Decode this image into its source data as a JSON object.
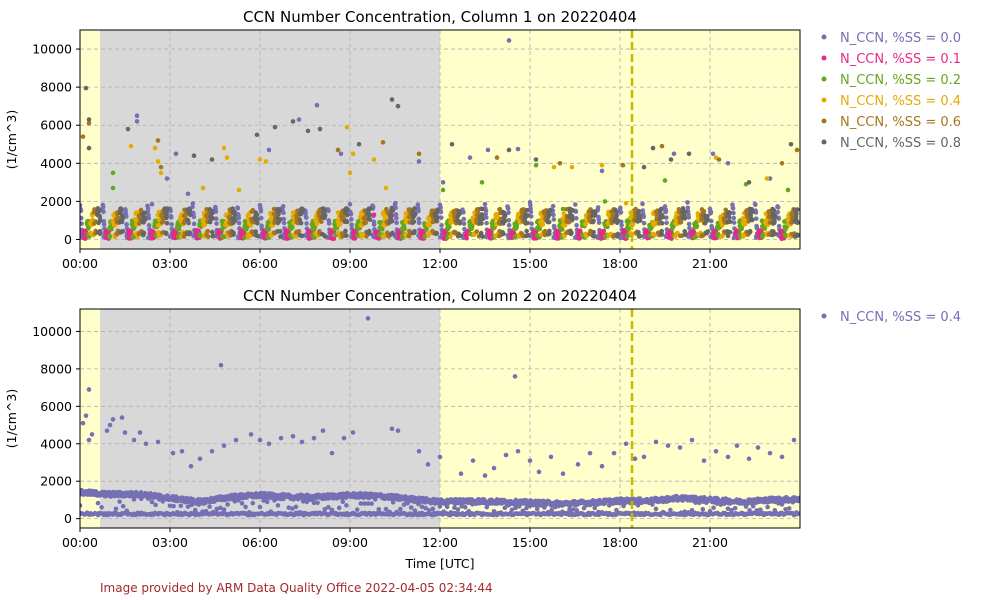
{
  "chart_data": [
    {
      "type": "scatter",
      "title": "CCN Number Concentration, Column 1 on 20220404",
      "ylabel": "(1/cm^3)",
      "xlabel": "",
      "xlim": [
        0,
        24
      ],
      "ylim": [
        -500,
        11000
      ],
      "x_unit": "hours UTC",
      "x_ticks": [
        0,
        3,
        6,
        9,
        12,
        15,
        18,
        21
      ],
      "x_tick_labels": [
        "00:00",
        "03:00",
        "06:00",
        "09:00",
        "12:00",
        "15:00",
        "18:00",
        "21:00"
      ],
      "y_ticks": [
        0,
        2000,
        4000,
        6000,
        8000,
        10000
      ],
      "y_tick_labels": [
        "0",
        "2000",
        "4000",
        "6000",
        "8000",
        "10000"
      ],
      "grid": true,
      "legend_position": "outside-right",
      "background_regions": [
        {
          "x0": 0,
          "x1": 24,
          "color": "#ffffcc"
        },
        {
          "x0": 0.67,
          "x1": 12.0,
          "color": "#d8d8d8"
        }
      ],
      "vline": {
        "x": 18.4,
        "color": "#c8b800",
        "style": "dashed"
      },
      "cycle_hours": 0.75,
      "series": [
        {
          "name": "N_CCN, %SS = 0.0",
          "color": "#7570b3",
          "baseline": 150,
          "cycle_amplitude": 1650,
          "outliers": [
            [
              1.9,
              6500
            ],
            [
              1.9,
              6200
            ],
            [
              2.4,
              1850
            ],
            [
              2.9,
              3200
            ],
            [
              3.2,
              4500
            ],
            [
              3.6,
              2400
            ],
            [
              6.3,
              4700
            ],
            [
              7.3,
              6300
            ],
            [
              7.9,
              7050
            ],
            [
              8.7,
              4500
            ],
            [
              11.3,
              4100
            ],
            [
              12.1,
              3000
            ],
            [
              13.0,
              4300
            ],
            [
              13.6,
              4700
            ],
            [
              14.3,
              10450
            ],
            [
              14.6,
              4750
            ],
            [
              16.4,
              1000
            ],
            [
              17.4,
              3600
            ],
            [
              19.8,
              4500
            ],
            [
              21.1,
              4500
            ],
            [
              21.6,
              4000
            ],
            [
              23.0,
              3200
            ]
          ]
        },
        {
          "name": "N_CCN, %SS = 0.1",
          "color": "#e7298a",
          "baseline": 80,
          "cycle_amplitude": 400,
          "outliers": [
            [
              9.8,
              1300
            ],
            [
              10.4,
              1250
            ],
            [
              11.0,
              400
            ]
          ]
        },
        {
          "name": "N_CCN, %SS = 0.2",
          "color": "#66a61e",
          "baseline": 200,
          "cycle_amplitude": 800,
          "outliers": [
            [
              1.1,
              2700
            ],
            [
              1.1,
              3500
            ],
            [
              2.9,
              1200
            ],
            [
              5.0,
              1300
            ],
            [
              12.1,
              2600
            ],
            [
              13.4,
              3000
            ],
            [
              15.2,
              3900
            ],
            [
              16.1,
              1600
            ],
            [
              17.5,
              2000
            ],
            [
              19.5,
              3100
            ],
            [
              22.2,
              2900
            ],
            [
              23.6,
              2600
            ]
          ]
        },
        {
          "name": "N_CCN, %SS = 0.4",
          "color": "#e6ab02",
          "baseline": 250,
          "cycle_amplitude": 1200,
          "outliers": [
            [
              1.7,
              4900
            ],
            [
              2.5,
              4800
            ],
            [
              2.6,
              4100
            ],
            [
              2.7,
              3500
            ],
            [
              3.5,
              1200
            ],
            [
              4.1,
              2700
            ],
            [
              4.8,
              4800
            ],
            [
              4.9,
              4300
            ],
            [
              5.3,
              2600
            ],
            [
              6.0,
              4200
            ],
            [
              6.2,
              4100
            ],
            [
              8.9,
              5900
            ],
            [
              9.0,
              3500
            ],
            [
              9.1,
              4500
            ],
            [
              9.8,
              4200
            ],
            [
              10.2,
              2700
            ],
            [
              15.8,
              3800
            ],
            [
              16.4,
              3800
            ],
            [
              17.4,
              3900
            ],
            [
              18.2,
              1900
            ],
            [
              21.2,
              4300
            ],
            [
              22.9,
              3200
            ]
          ]
        },
        {
          "name": "N_CCN, %SS = 0.6",
          "color": "#a6761d",
          "baseline": 300,
          "cycle_amplitude": 1300,
          "outliers": [
            [
              0.1,
              5400
            ],
            [
              0.3,
              6100
            ],
            [
              2.6,
              5200
            ],
            [
              2.7,
              3800
            ],
            [
              8.6,
              4700
            ],
            [
              10.1,
              5100
            ],
            [
              11.3,
              4500
            ],
            [
              13.9,
              4300
            ],
            [
              16.0,
              4000
            ],
            [
              18.1,
              3900
            ],
            [
              19.4,
              4900
            ],
            [
              21.3,
              4200
            ],
            [
              23.4,
              4000
            ],
            [
              23.9,
              4700
            ]
          ]
        },
        {
          "name": "N_CCN, %SS = 0.8",
          "color": "#666666",
          "baseline": 300,
          "cycle_amplitude": 1350,
          "outliers": [
            [
              0.2,
              7950
            ],
            [
              0.3,
              6300
            ],
            [
              0.3,
              4800
            ],
            [
              1.6,
              5800
            ],
            [
              3.8,
              4400
            ],
            [
              4.4,
              4200
            ],
            [
              5.9,
              5500
            ],
            [
              6.5,
              5900
            ],
            [
              7.1,
              6200
            ],
            [
              7.6,
              5700
            ],
            [
              8.0,
              5800
            ],
            [
              9.3,
              5000
            ],
            [
              10.4,
              7350
            ],
            [
              10.6,
              7000
            ],
            [
              12.4,
              5000
            ],
            [
              14.3,
              4700
            ],
            [
              15.2,
              4200
            ],
            [
              16.3,
              1200
            ],
            [
              18.8,
              3800
            ],
            [
              19.1,
              4800
            ],
            [
              19.7,
              4200
            ],
            [
              20.3,
              4500
            ],
            [
              22.3,
              3000
            ],
            [
              23.7,
              5000
            ]
          ]
        }
      ]
    },
    {
      "type": "scatter",
      "title": "CCN Number Concentration, Column 2 on 20220404",
      "ylabel": "(1/cm^3)",
      "xlabel": "Time [UTC]",
      "xlim": [
        0,
        24
      ],
      "ylim": [
        -500,
        11200
      ],
      "x_unit": "hours UTC",
      "x_ticks": [
        0,
        3,
        6,
        9,
        12,
        15,
        18,
        21
      ],
      "x_tick_labels": [
        "00:00",
        "03:00",
        "06:00",
        "09:00",
        "12:00",
        "15:00",
        "18:00",
        "21:00"
      ],
      "y_ticks": [
        0,
        2000,
        4000,
        6000,
        8000,
        10000
      ],
      "y_tick_labels": [
        "0",
        "2000",
        "4000",
        "6000",
        "8000",
        "10000"
      ],
      "grid": true,
      "legend_position": "outside-right",
      "background_regions": [
        {
          "x0": 0,
          "x1": 24,
          "color": "#ffffcc"
        },
        {
          "x0": 0.67,
          "x1": 12.0,
          "color": "#d8d8d8"
        }
      ],
      "vline": {
        "x": 18.4,
        "color": "#c8b800",
        "style": "dashed"
      },
      "series": [
        {
          "name": "N_CCN, %SS = 0.4",
          "color": "#7570b3",
          "band": [
            [
              0,
              1400
            ],
            [
              1,
              1300
            ],
            [
              2,
              1300
            ],
            [
              3,
              1100
            ],
            [
              4,
              900
            ],
            [
              5,
              1150
            ],
            [
              6,
              1250
            ],
            [
              7,
              1150
            ],
            [
              8,
              1150
            ],
            [
              9,
              1250
            ],
            [
              10,
              1200
            ],
            [
              11,
              1050
            ],
            [
              12,
              900
            ],
            [
              13,
              950
            ],
            [
              14,
              900
            ],
            [
              15,
              850
            ],
            [
              16,
              800
            ],
            [
              17,
              850
            ],
            [
              18,
              950
            ],
            [
              19,
              950
            ],
            [
              20,
              1100
            ],
            [
              21,
              1000
            ],
            [
              22,
              900
            ],
            [
              23,
              1000
            ],
            [
              24,
              1050
            ]
          ],
          "floor": 250,
          "outliers": [
            [
              0.1,
              5100
            ],
            [
              0.2,
              5500
            ],
            [
              0.3,
              6900
            ],
            [
              0.3,
              4200
            ],
            [
              0.4,
              4500
            ],
            [
              0.9,
              4700
            ],
            [
              1.0,
              5000
            ],
            [
              1.1,
              5300
            ],
            [
              1.4,
              5400
            ],
            [
              1.5,
              4600
            ],
            [
              1.8,
              4200
            ],
            [
              2.0,
              4600
            ],
            [
              2.2,
              4000
            ],
            [
              2.6,
              4100
            ],
            [
              3.1,
              3500
            ],
            [
              3.4,
              3600
            ],
            [
              3.7,
              2800
            ],
            [
              4.0,
              3200
            ],
            [
              4.4,
              3600
            ],
            [
              4.7,
              8200
            ],
            [
              4.8,
              3900
            ],
            [
              5.2,
              4200
            ],
            [
              5.7,
              4500
            ],
            [
              6.0,
              4200
            ],
            [
              6.3,
              4000
            ],
            [
              6.7,
              4300
            ],
            [
              7.1,
              4400
            ],
            [
              7.4,
              4100
            ],
            [
              7.8,
              4300
            ],
            [
              8.1,
              4700
            ],
            [
              8.4,
              3500
            ],
            [
              8.8,
              4300
            ],
            [
              9.1,
              4600
            ],
            [
              9.6,
              10700
            ],
            [
              10.4,
              4800
            ],
            [
              10.6,
              4700
            ],
            [
              11.3,
              3600
            ],
            [
              11.6,
              2900
            ],
            [
              12.0,
              3300
            ],
            [
              12.7,
              2400
            ],
            [
              13.1,
              3100
            ],
            [
              13.5,
              2300
            ],
            [
              13.8,
              2700
            ],
            [
              14.2,
              3400
            ],
            [
              14.5,
              7600
            ],
            [
              14.6,
              3600
            ],
            [
              15.0,
              3100
            ],
            [
              15.3,
              2500
            ],
            [
              15.7,
              3300
            ],
            [
              16.1,
              2400
            ],
            [
              16.6,
              2900
            ],
            [
              17.0,
              3500
            ],
            [
              17.4,
              2800
            ],
            [
              17.8,
              3500
            ],
            [
              18.2,
              4000
            ],
            [
              18.5,
              3200
            ],
            [
              18.8,
              3300
            ],
            [
              19.2,
              4100
            ],
            [
              19.6,
              3900
            ],
            [
              20.0,
              3800
            ],
            [
              20.4,
              4200
            ],
            [
              20.8,
              3100
            ],
            [
              21.2,
              3600
            ],
            [
              21.6,
              3300
            ],
            [
              21.9,
              3900
            ],
            [
              22.3,
              3200
            ],
            [
              22.6,
              3800
            ],
            [
              23.0,
              3500
            ],
            [
              23.4,
              3300
            ],
            [
              23.8,
              4200
            ]
          ]
        }
      ]
    }
  ],
  "footer": {
    "credit": "Image provided by ARM Data Quality Office 2022-04-05 02:34:44"
  }
}
